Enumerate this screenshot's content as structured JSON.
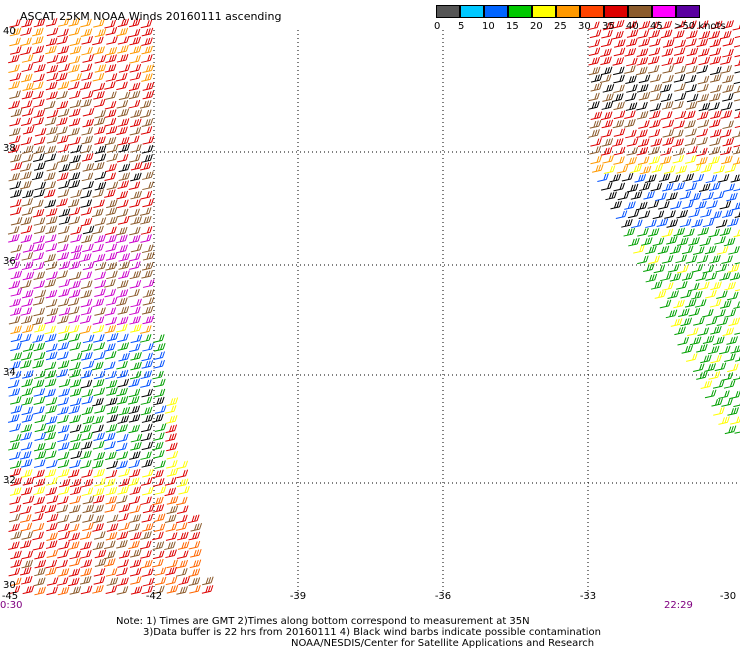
{
  "title": "ASCAT 25KM NOAA Winds 20160111 ascending",
  "colorbar": {
    "labels": [
      "0",
      "5",
      "10",
      "15",
      "20",
      "25",
      "30",
      "35",
      "40",
      "45",
      ">50 knots"
    ],
    "colors": [
      "#555555",
      "#00c8ff",
      "#0064ff",
      "#00c800",
      "#ffff00",
      "#ff9900",
      "#ff4400",
      "#dd0000",
      "#8b5a2b",
      "#ff00ff",
      "#5a00a0"
    ]
  },
  "axes": {
    "lon_labels": [
      "-45",
      "-42",
      "-39",
      "-36",
      "-33",
      "-30"
    ],
    "lat_labels": [
      "40",
      "38",
      "36",
      "34",
      "32",
      "30"
    ]
  },
  "times": {
    "left": "0:30",
    "right": "22:29"
  },
  "notes": [
    "Note: 1) Times are GMT 2)Times along bottom correspond to measurement at 35N",
    "3)Data buffer is 22 hrs from 20160111 4) Black wind barbs indicate possible contamination",
    "NOAA/NESDIS/Center for Satellite Applications and Research"
  ]
}
